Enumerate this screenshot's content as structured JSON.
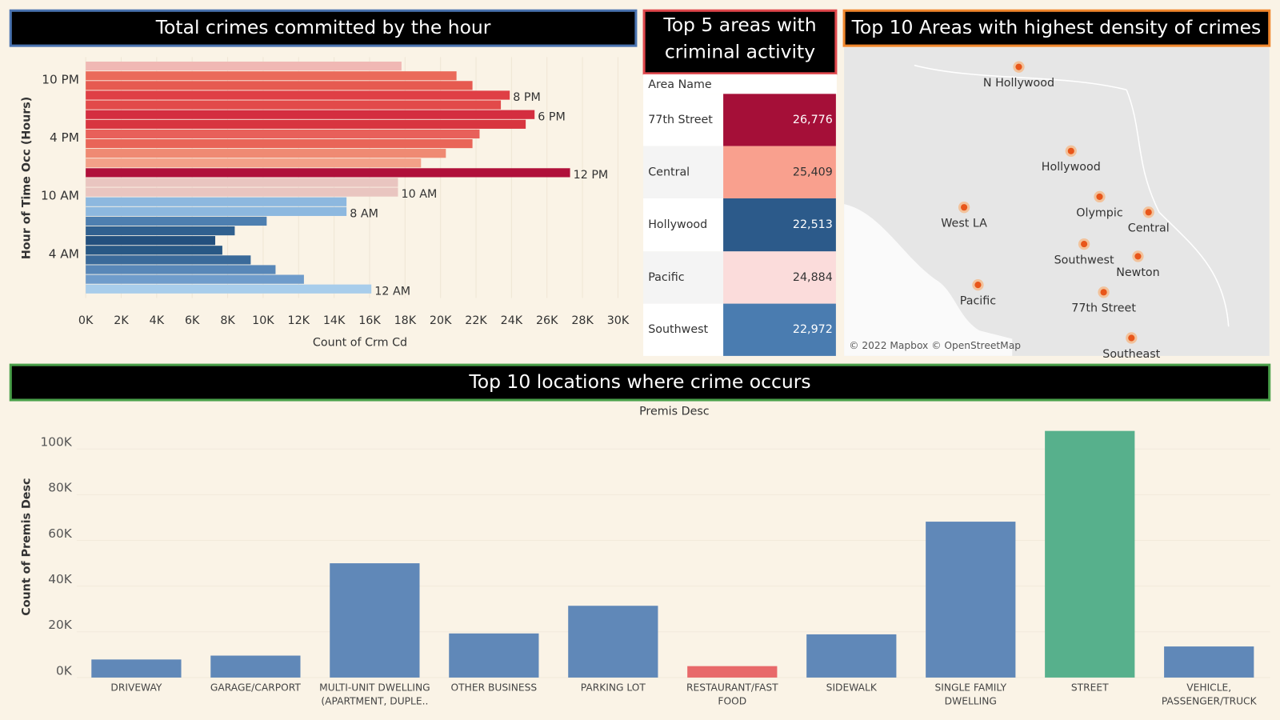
{
  "chart_data": [
    {
      "type": "hbar",
      "title": "Total crimes committed by the hour",
      "xlabel": "Count of Crm Cd",
      "ylabel": "Hour of Time Occ (Hours)",
      "categories": [
        null,
        "10 PM",
        null,
        null,
        null,
        null,
        null,
        "4 PM",
        null,
        null,
        null,
        null,
        null,
        "10 AM",
        null,
        null,
        null,
        null,
        null,
        "4 AM",
        null,
        null,
        null,
        null
      ],
      "values": [
        17800,
        20900,
        21800,
        23900,
        23400,
        25300,
        24800,
        22200,
        21800,
        20300,
        18900,
        27300,
        17600,
        17600,
        14700,
        14700,
        10200,
        8400,
        7300,
        7700,
        9300,
        10700,
        12300,
        16100
      ],
      "colors": [
        "#f0b8b4",
        "#ea6a5a",
        "#e65a50",
        "#df3f45",
        "#e24a4a",
        "#d42e40",
        "#d8353f",
        "#e8605a",
        "#e96558",
        "#ef8a73",
        "#f3a088",
        "#b0103a",
        "#e9c5c0",
        "#e9c5c0",
        "#8db8df",
        "#8db8df",
        "#4e7fb0",
        "#30608f",
        "#23507e",
        "#285885",
        "#3a6a9a",
        "#5887b8",
        "#6f9ccb",
        "#a8cdeb"
      ],
      "bar_labels": [
        null,
        null,
        null,
        "8 PM",
        null,
        "6 PM",
        null,
        null,
        null,
        null,
        null,
        "12 PM",
        null,
        "10 AM",
        null,
        "8 AM",
        null,
        null,
        null,
        null,
        null,
        null,
        null,
        "12 AM"
      ],
      "xlim": [
        0,
        30000
      ],
      "xticks": [
        {
          "value": 0,
          "label": "0K"
        },
        {
          "value": 2000,
          "label": "2K"
        },
        {
          "value": 4000,
          "label": "4K"
        },
        {
          "value": 6000,
          "label": "6K"
        },
        {
          "value": 8000,
          "label": "8K"
        },
        {
          "value": 10000,
          "label": "10K"
        },
        {
          "value": 12000,
          "label": "12K"
        },
        {
          "value": 14000,
          "label": "14K"
        },
        {
          "value": 16000,
          "label": "16K"
        },
        {
          "value": 18000,
          "label": "18K"
        },
        {
          "value": 20000,
          "label": "20K"
        },
        {
          "value": 22000,
          "label": "22K"
        },
        {
          "value": 24000,
          "label": "24K"
        },
        {
          "value": 26000,
          "label": "26K"
        },
        {
          "value": 28000,
          "label": "28K"
        },
        {
          "value": 30000,
          "label": "30K"
        }
      ]
    },
    {
      "type": "bar",
      "title": "Top 10 locations where crime occurs",
      "xlabel": "Premis Desc",
      "ylabel": "Count of Premis Desc",
      "categories": [
        "DRIVEWAY",
        "GARAGE/CARPORT",
        "MULTI-UNIT DWELLING (APARTMENT, DUPLE..",
        "OTHER BUSINESS",
        "PARKING LOT",
        "RESTAURANT/FAST FOOD",
        "SIDEWALK",
        "SINGLE FAMILY DWELLING",
        "STREET",
        "VEHICLE, PASSENGER/TRUCK"
      ],
      "values": [
        7900,
        9600,
        50000,
        19300,
        31400,
        5000,
        18900,
        68200,
        107900,
        13600
      ],
      "colors": [
        "#6088b8",
        "#6088b8",
        "#6088b8",
        "#6088b8",
        "#6088b8",
        "#e8696a",
        "#6088b8",
        "#6088b8",
        "#57b08c",
        "#6088b8"
      ],
      "ylim": [
        0,
        110000
      ],
      "yticks": [
        {
          "value": 0,
          "label": "0K"
        },
        {
          "value": 20000,
          "label": "20K"
        },
        {
          "value": 40000,
          "label": "40K"
        },
        {
          "value": 60000,
          "label": "60K"
        },
        {
          "value": 80000,
          "label": "80K"
        },
        {
          "value": 100000,
          "label": "100K"
        }
      ]
    }
  ],
  "table": {
    "title": "Top 5 areas with criminal activity",
    "header": "Area Name",
    "rows": [
      [
        "77th Street",
        "26,776"
      ],
      [
        "Central",
        "25,409"
      ],
      [
        "Hollywood",
        "22,513"
      ],
      [
        "Pacific",
        "24,884"
      ],
      [
        "Southwest",
        "22,972"
      ]
    ],
    "colors": [
      "#a50f38",
      "#f9a08e",
      "#2c5a8a",
      "#fbdcdb",
      "#4a7cb0"
    ]
  },
  "map": {
    "title": "Top 10 Areas with highest density of crimes",
    "labels": [
      "N Hollywood",
      "Hollywood",
      "West LA",
      "Olympic",
      "Central",
      "Southwest",
      "Newton",
      "Pacific",
      "77th Street",
      "Southeast"
    ],
    "attribution": "© 2022 Mapbox © OpenStreetMap"
  }
}
